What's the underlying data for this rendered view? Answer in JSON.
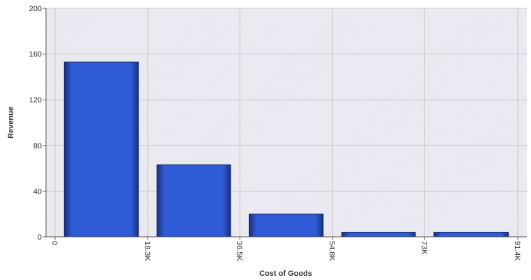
{
  "chart_data": {
    "type": "bar",
    "xlabel": "Cost of Goods",
    "ylabel": "Revenue",
    "ylim": [
      0,
      200
    ],
    "y_ticks": [
      0,
      40,
      80,
      120,
      160,
      200
    ],
    "x_range": [
      0,
      91.4
    ],
    "x_tick_labels": [
      "0",
      "18.3K",
      "36.5K",
      "54.8K",
      "73K",
      "91.4K"
    ],
    "bins": [
      {
        "from": 0,
        "to": 18.3,
        "value": 153
      },
      {
        "from": 18.3,
        "to": 36.5,
        "value": 63
      },
      {
        "from": 36.5,
        "to": 54.8,
        "value": 20
      },
      {
        "from": 54.8,
        "to": 73,
        "value": 4
      },
      {
        "from": 73,
        "to": 91.4,
        "value": 4
      }
    ],
    "grid": true,
    "colors": {
      "bar": "#2f5bd6",
      "bar_edge": "#1a2f7a",
      "plot_background": "#ebebf1",
      "grid": "#c8c8c8"
    }
  }
}
